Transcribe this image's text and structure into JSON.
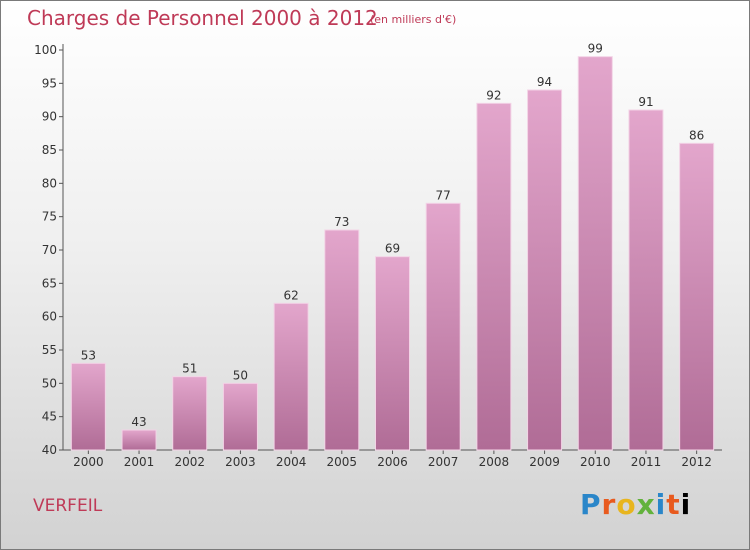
{
  "header": {
    "title": "Charges de Personnel 2000 à 2012",
    "subtitle": "(en milliers d'€)"
  },
  "footer": {
    "commune": "VERFEIL",
    "logo_text": "Proxiti"
  },
  "colors": {
    "bar_top": "#e3a6cc",
    "bar_bottom": "#b06c96",
    "title": "#bf3a57",
    "axis": "#555555"
  },
  "chart_data": {
    "type": "bar",
    "title": "Charges de Personnel 2000 à 2012",
    "subtitle": "(en milliers d'€)",
    "xlabel": "",
    "ylabel": "",
    "categories": [
      "2000",
      "2001",
      "2002",
      "2003",
      "2004",
      "2005",
      "2006",
      "2007",
      "2008",
      "2009",
      "2010",
      "2011",
      "2012"
    ],
    "values": [
      53,
      43,
      51,
      50,
      62,
      73,
      69,
      77,
      92,
      94,
      99,
      91,
      86
    ],
    "ylim": [
      40,
      100
    ],
    "yticks": [
      40,
      45,
      50,
      55,
      60,
      65,
      70,
      75,
      80,
      85,
      90,
      95,
      100
    ],
    "grid": false,
    "legend": "none"
  }
}
